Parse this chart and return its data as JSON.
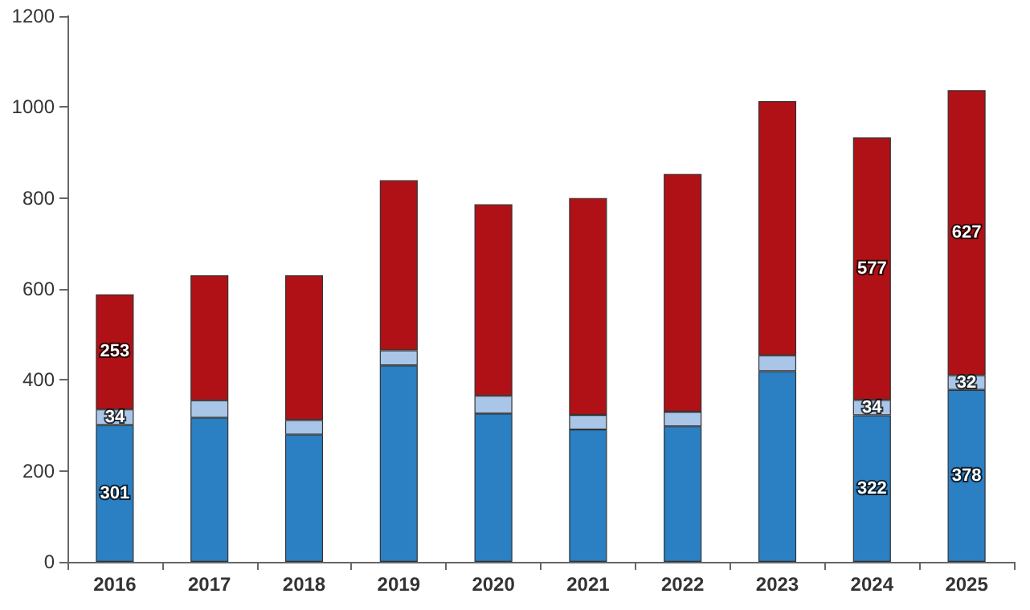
{
  "chart_data": {
    "type": "bar",
    "stacked": true,
    "categories": [
      "2016",
      "2017",
      "2018",
      "2019",
      "2020",
      "2021",
      "2022",
      "2023",
      "2024",
      "2025"
    ],
    "series": [
      {
        "color": "#2b7fc3",
        "values": [
          301,
          317,
          280,
          432,
          326,
          291,
          298,
          419,
          322,
          378
        ],
        "value_labels": [
          "301",
          null,
          null,
          null,
          null,
          null,
          null,
          null,
          "322",
          "378"
        ]
      },
      {
        "color": "#a9c5e8",
        "values": [
          34,
          38,
          32,
          33,
          39,
          32,
          32,
          35,
          34,
          32
        ],
        "value_labels": [
          "34",
          null,
          null,
          null,
          null,
          null,
          null,
          null,
          "34",
          "32"
        ]
      },
      {
        "color": "#b01116",
        "values": [
          253,
          275,
          318,
          374,
          421,
          477,
          523,
          559,
          577,
          627
        ],
        "value_labels": [
          "253",
          null,
          null,
          null,
          null,
          null,
          null,
          null,
          "577",
          "627"
        ]
      }
    ],
    "ylim": [
      0,
      1200
    ],
    "yticks": [
      0,
      200,
      400,
      600,
      800,
      1000,
      1200
    ],
    "grid": false
  }
}
